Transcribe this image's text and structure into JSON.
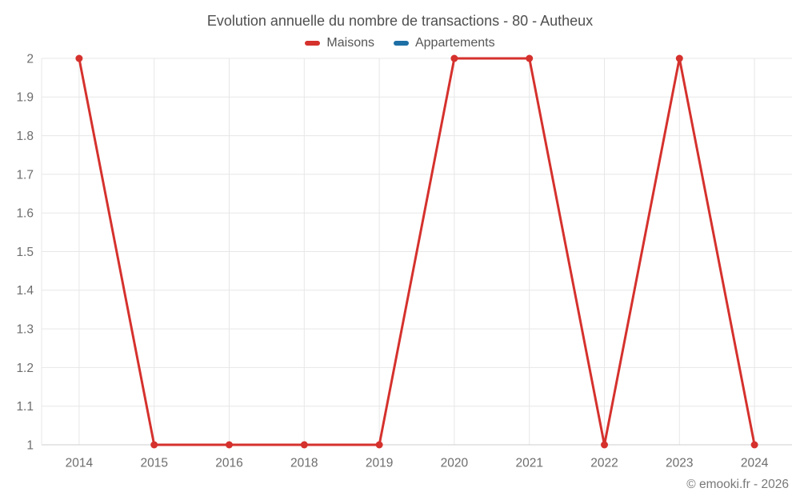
{
  "chart_data": {
    "type": "line",
    "title": "Evolution annuelle du nombre de transactions - 80 - Autheux",
    "categories": [
      "2014",
      "2015",
      "2016",
      "2018",
      "2019",
      "2020",
      "2021",
      "2022",
      "2023",
      "2024"
    ],
    "series": [
      {
        "name": "Maisons",
        "color": "#d5312d",
        "values": [
          2,
          1,
          1,
          1,
          1,
          2,
          2,
          1,
          2,
          1
        ]
      },
      {
        "name": "Appartements",
        "color": "#1d6fa5",
        "values": []
      }
    ],
    "xlabel": "",
    "ylabel": "",
    "ylim": [
      1,
      2
    ],
    "y_step": 0.1,
    "y_tick_labels": [
      "1",
      "1.1",
      "1.2",
      "1.3",
      "1.4",
      "1.5",
      "1.6",
      "1.7",
      "1.8",
      "1.9",
      "2"
    ],
    "grid": true,
    "legend_position": "top",
    "colors": {
      "grid": "#e7e7e7",
      "axis_border": "#cfcfcf",
      "tick_text": "#6d6d6d"
    }
  },
  "footer": {
    "credit": "© emooki.fr - 2026"
  }
}
